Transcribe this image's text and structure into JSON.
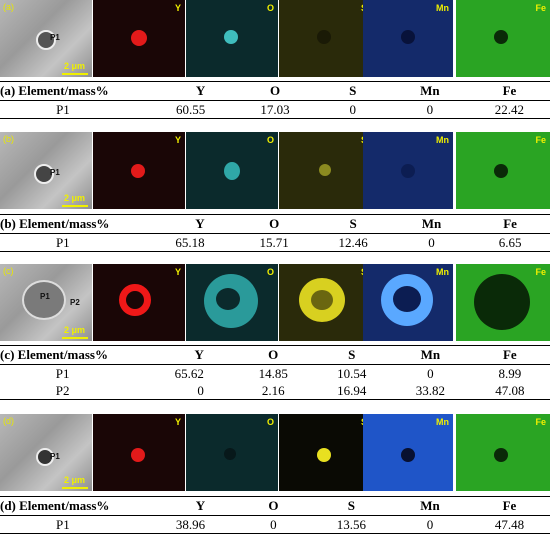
{
  "columns": [
    "Y",
    "O",
    "S",
    "Mn",
    "Fe"
  ],
  "scale_label": "2 μm",
  "panels": [
    {
      "tag": "(a)",
      "header": "(a) Element/mass%",
      "points": [
        "P1"
      ],
      "rows": [
        {
          "point": "P1",
          "values": [
            "60.55",
            "17.03",
            "0",
            "0",
            "22.42"
          ]
        }
      ]
    },
    {
      "tag": "(b)",
      "header": "(b) Element/mass%",
      "points": [
        "P1"
      ],
      "rows": [
        {
          "point": "P1",
          "values": [
            "65.18",
            "15.71",
            "12.46",
            "0",
            "6.65"
          ]
        }
      ]
    },
    {
      "tag": "(c)",
      "header": "(c) Element/mass%",
      "points": [
        "P1",
        "P2"
      ],
      "rows": [
        {
          "point": "P1",
          "values": [
            "65.62",
            "14.85",
            "10.54",
            "0",
            "8.99"
          ]
        },
        {
          "point": "P2",
          "values": [
            "0",
            "2.16",
            "16.94",
            "33.82",
            "47.08"
          ]
        }
      ]
    },
    {
      "tag": "(d)",
      "header": "(d) Element/mass%",
      "points": [
        "P1"
      ],
      "rows": [
        {
          "point": "P1",
          "values": [
            "38.96",
            "0",
            "13.56",
            "0",
            "47.48"
          ]
        }
      ]
    }
  ],
  "colors": {
    "Y": "#ff2020",
    "O": "#30c8c8",
    "S": "#e8e020",
    "Mn": "#3a6aff",
    "Fe": "#2fbf2a"
  }
}
